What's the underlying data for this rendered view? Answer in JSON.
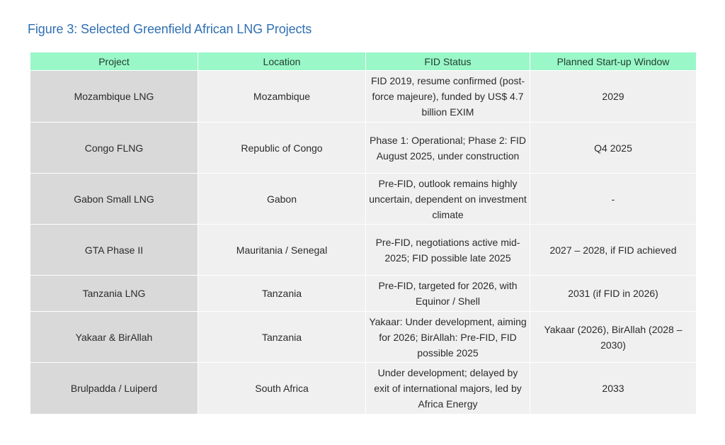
{
  "figure": {
    "title": "Figure 3: Selected Greenfield African LNG Projects"
  },
  "table": {
    "headers": [
      "Project",
      "Location",
      "FID Status",
      "Planned Start-up Window"
    ],
    "rows": [
      {
        "project": "Mozambique LNG",
        "location": "Mozambique",
        "fid_status": "FID 2019, resume confirmed (post-force majeure), funded by US$ 4.7 billion EXIM",
        "startup": "2029"
      },
      {
        "project": "Congo FLNG",
        "location": "Republic of Congo",
        "fid_status": "Phase 1: Operational; Phase 2: FID August 2025, under construction",
        "startup": "Q4 2025"
      },
      {
        "project": "Gabon Small LNG",
        "location": "Gabon",
        "fid_status": "Pre-FID, outlook remains highly uncertain, dependent on investment climate",
        "startup": "-"
      },
      {
        "project": "GTA Phase II",
        "location": "Mauritania / Senegal",
        "fid_status": "Pre-FID, negotiations active mid-2025; FID possible late 2025",
        "startup": "2027 – 2028, if FID achieved"
      },
      {
        "project": "Tanzania LNG",
        "location": "Tanzania",
        "fid_status": "Pre-FID, targeted for 2026, with Equinor / Shell",
        "startup": "2031 (if FID in 2026)"
      },
      {
        "project": "Yakaar & BirAllah",
        "location": "Tanzania",
        "fid_status": "Yakaar: Under development, aiming for 2026; BirAllah: Pre-FID, FID possible 2025",
        "startup": "Yakaar (2026), BirAllah (2028 – 2030)"
      },
      {
        "project": "Brulpadda / Luiperd",
        "location": "South Africa",
        "fid_status": "Under development; delayed by exit of international majors, led by Africa Energy",
        "startup": "2033"
      }
    ]
  },
  "colors": {
    "title": "#2f6fb3",
    "header_bg": "#9af7c8",
    "project_col_bg": "#d9d9d9",
    "cell_bg": "#f0f0f0"
  }
}
